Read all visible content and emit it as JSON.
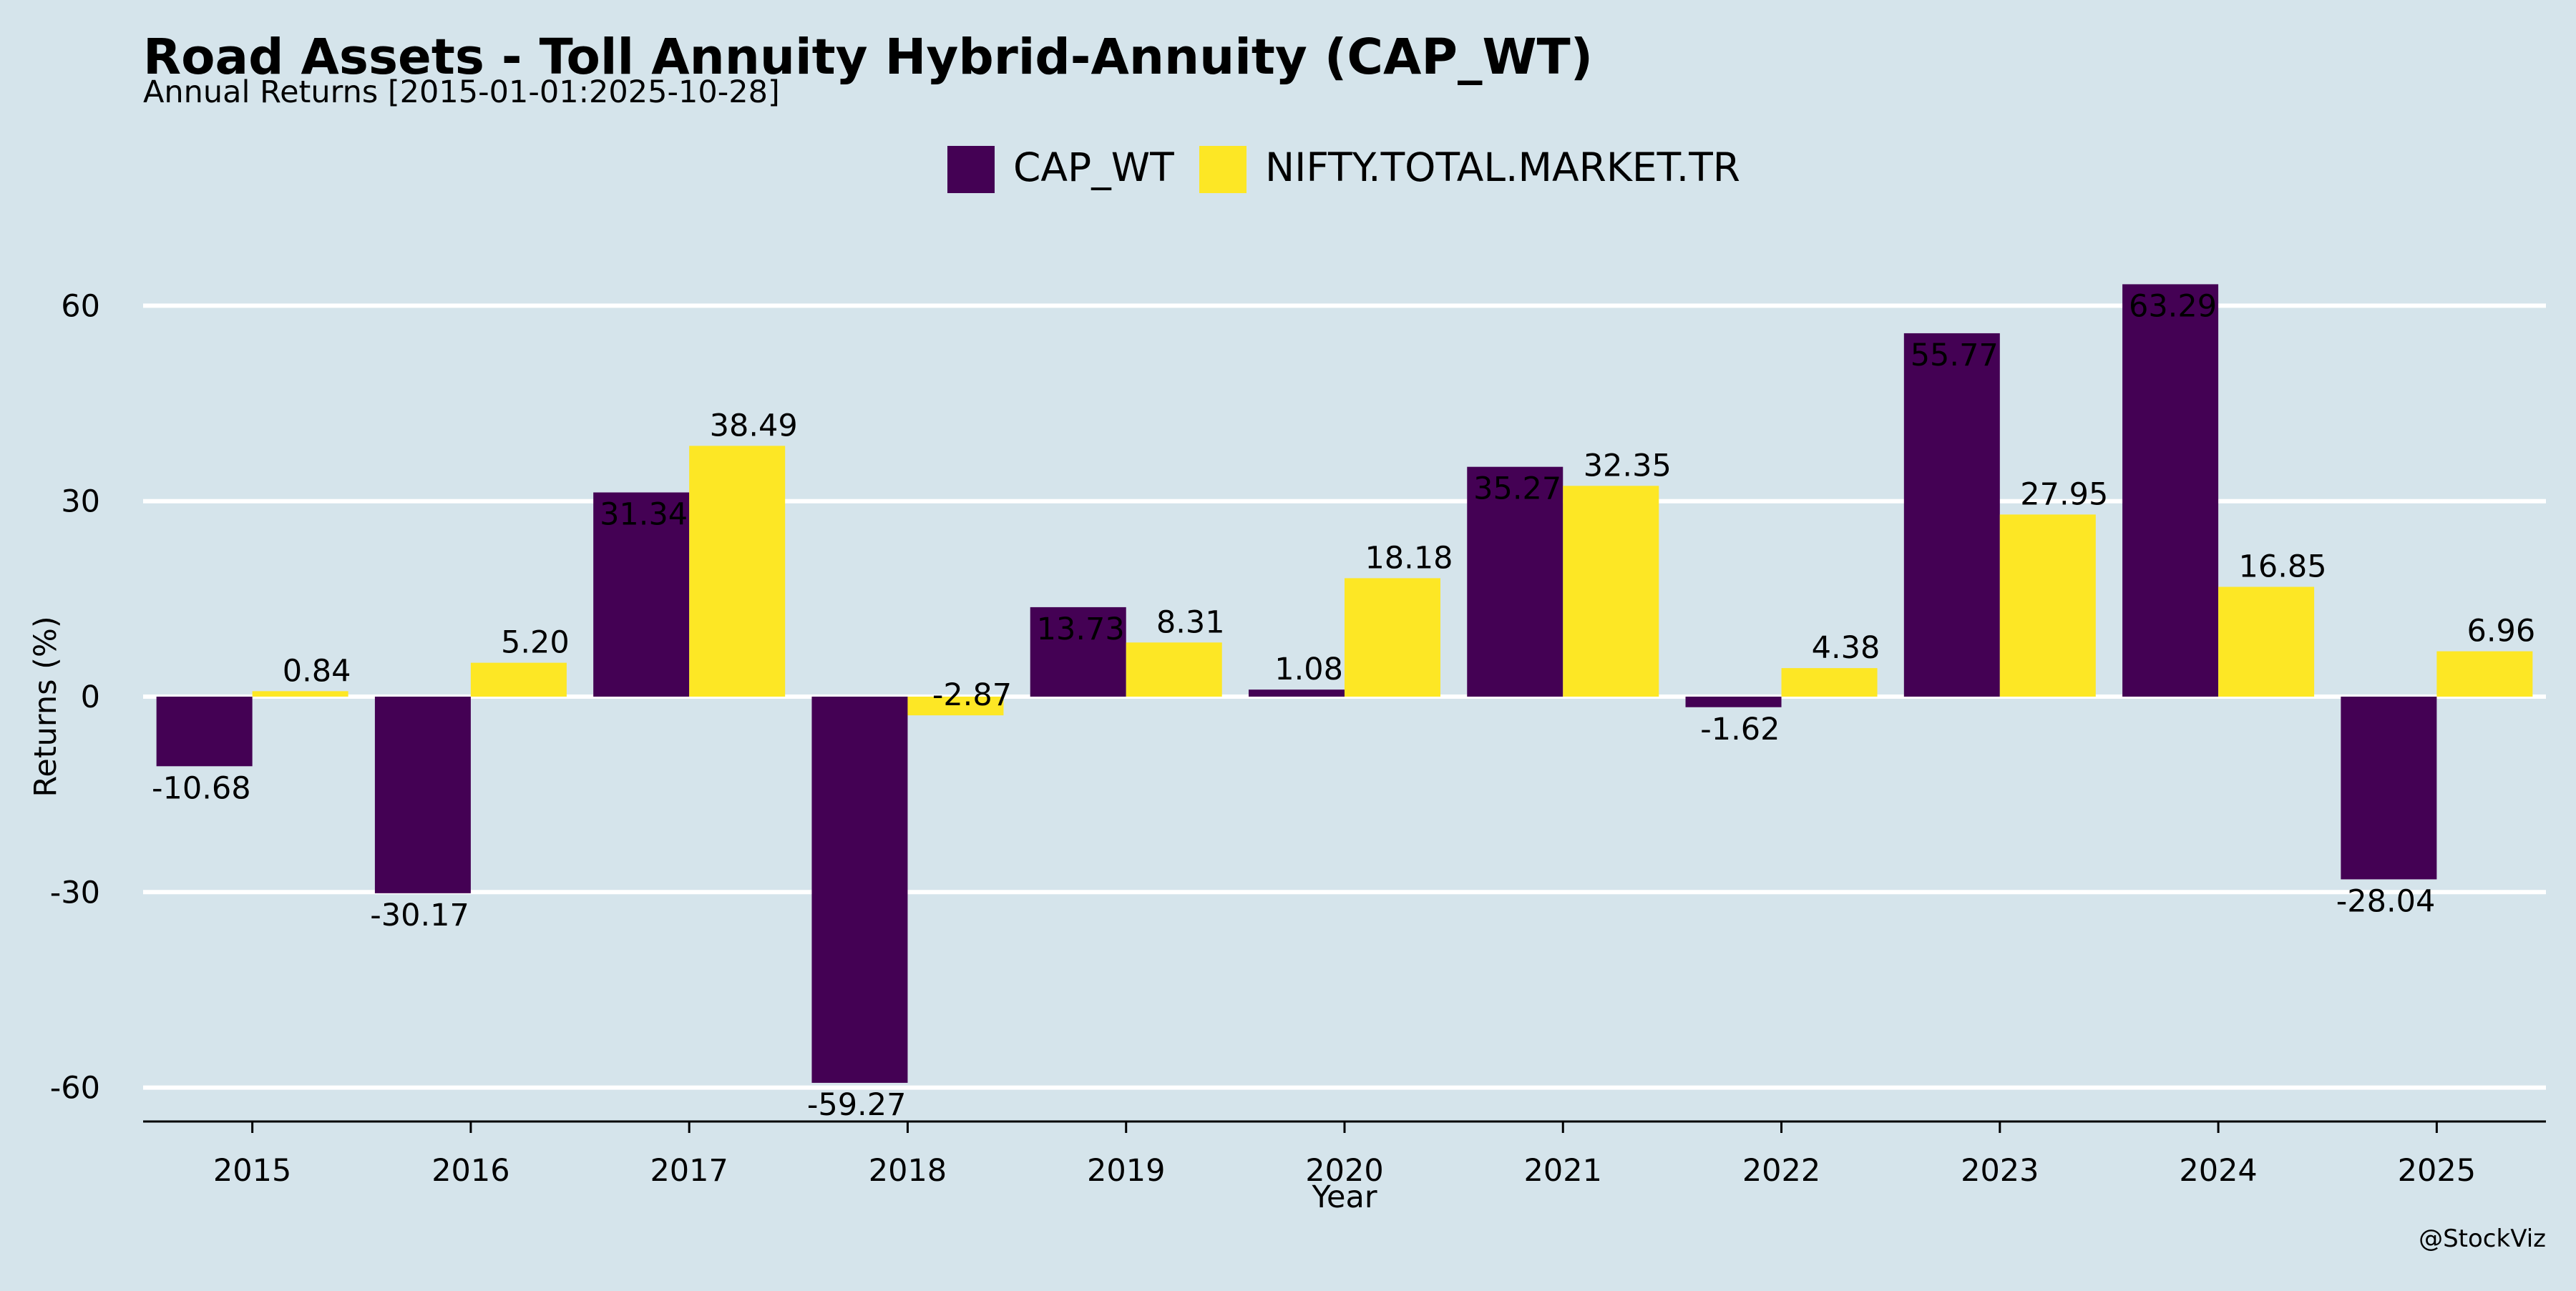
{
  "chart_data": {
    "type": "bar",
    "title": "Road Assets - Toll Annuity Hybrid-Annuity (CAP_WT)",
    "subtitle": "Annual Returns [2015-01-01:2025-10-28]",
    "xlabel": "Year",
    "ylabel": "Returns (%)",
    "ylim": [
      -65,
      75
    ],
    "yticks": [
      -60,
      -30,
      0,
      30,
      60
    ],
    "grid": true,
    "legend_position": "top-center",
    "categories": [
      "2015",
      "2016",
      "2017",
      "2018",
      "2019",
      "2020",
      "2021",
      "2022",
      "2023",
      "2024",
      "2025"
    ],
    "series": [
      {
        "name": "CAP_WT",
        "color": "#440154",
        "values": [
          -10.68,
          -30.17,
          31.34,
          -59.27,
          13.73,
          1.08,
          35.27,
          -1.62,
          55.77,
          63.29,
          -28.04
        ]
      },
      {
        "name": "NIFTY.TOTAL.MARKET.TR",
        "color": "#fde725",
        "values": [
          0.84,
          5.2,
          38.49,
          -2.87,
          8.31,
          18.18,
          32.35,
          4.38,
          27.95,
          16.85,
          6.96
        ]
      }
    ],
    "background_color": "#d5e4eb",
    "grid_color": "#ffffff",
    "credit": "@StockViz"
  }
}
